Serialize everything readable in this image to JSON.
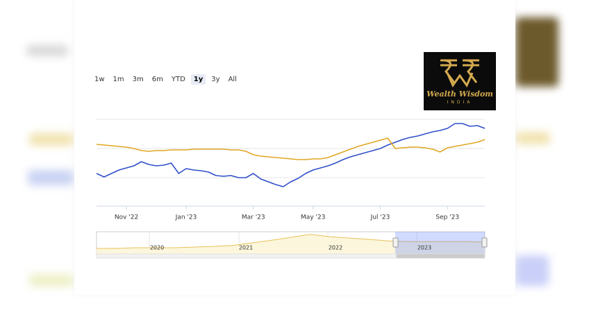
{
  "logo": {
    "title": "Wealth Wisdom",
    "subtitle": "INDIA"
  },
  "range_selector": {
    "buttons": [
      "1w",
      "1m",
      "3m",
      "6m",
      "YTD",
      "1y",
      "3y",
      "All"
    ],
    "selected": 5
  },
  "chart_data": {
    "type": "line",
    "categories": [
      null,
      null,
      null,
      null,
      "Nov '22",
      null,
      null,
      null,
      null,
      null,
      null,
      null,
      "Jan '23",
      null,
      null,
      null,
      null,
      null,
      null,
      null,
      null,
      "Mar '23",
      null,
      null,
      null,
      null,
      null,
      null,
      null,
      "May '23",
      null,
      null,
      null,
      null,
      null,
      null,
      null,
      null,
      "Jul '23",
      null,
      null,
      null,
      null,
      null,
      null,
      null,
      null,
      "Sep '23",
      null,
      null,
      null,
      null,
      null
    ],
    "ylim": [
      0,
      100
    ],
    "series": [
      {
        "color": "#2f4fc8",
        "values": [
          37.6,
          33.6,
          37.6,
          41.6,
          44,
          46.4,
          51.2,
          48,
          46.4,
          47.2,
          49.6,
          37.6,
          43.2,
          41.6,
          40.8,
          39.2,
          35.2,
          34.4,
          35.2,
          32.8,
          32.8,
          37.6,
          31.2,
          28,
          24.8,
          22.4,
          28,
          32,
          37.6,
          41.6,
          44,
          46.4,
          49.6,
          53.6,
          56.8,
          59.2,
          61.6,
          64,
          66.4,
          70.4,
          73.6,
          76.8,
          79.2,
          80.8,
          83.2,
          85.6,
          87.2,
          89.6,
          95.2,
          95.2,
          92,
          92.8,
          89.6
        ]
      },
      {
        "color": "#e0a623",
        "values": [
          71.2,
          70.4,
          69.6,
          68.8,
          68,
          66.4,
          64,
          63.2,
          64,
          64,
          64.8,
          64.8,
          64.8,
          65.6,
          65.6,
          65.6,
          65.6,
          65.6,
          64.8,
          64.8,
          63.2,
          59.2,
          57.6,
          56.8,
          56,
          55.2,
          54.4,
          53.6,
          53.6,
          54.4,
          54.4,
          56,
          59.2,
          62.4,
          65.6,
          68.8,
          71.2,
          73.6,
          76,
          78.4,
          66.4,
          67.2,
          68,
          68,
          67.2,
          65.6,
          62.4,
          67.2,
          68.8,
          70.4,
          72,
          73.6,
          76.8
        ]
      }
    ],
    "grid": true,
    "navigator": {
      "labels": [
        "2020",
        "2021",
        "2022",
        "2023"
      ],
      "color": "#e8c15a",
      "ylim": [
        0,
        100
      ],
      "values": [
        25,
        25,
        28,
        28,
        28,
        31,
        34,
        38,
        50,
        62,
        75,
        88,
        78,
        72,
        66,
        59,
        56,
        56,
        56,
        56,
        53
      ]
    }
  }
}
